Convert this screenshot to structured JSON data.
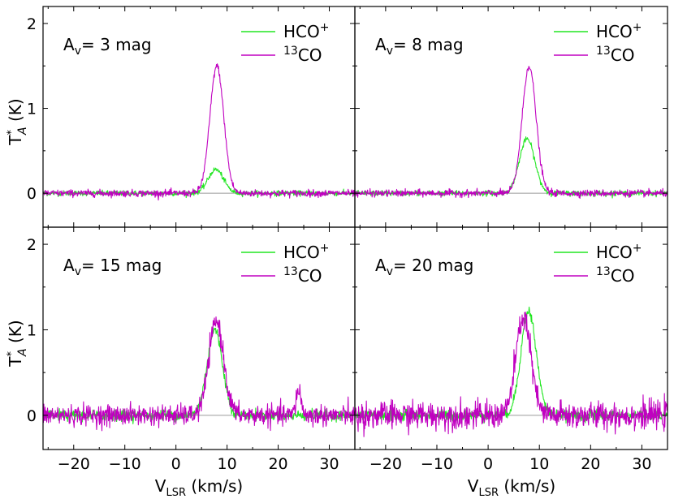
{
  "chart_data": {
    "type": "line",
    "layout": "2x2 shared axes",
    "xlabel_main": "V",
    "xlabel_sub": "LSR",
    "xlabel_unit": " (km/s)",
    "ylabel_main": "T",
    "ylabel_sup": "*",
    "ylabel_sub": "A",
    "ylabel_unit": " (K)",
    "xlim": [
      -26,
      35
    ],
    "xticks": [
      -20,
      -10,
      0,
      10,
      20,
      30
    ],
    "xtick_labels": [
      "−20",
      "−10",
      "0",
      "10",
      "20",
      "30"
    ],
    "colors": {
      "hco": "#22e622",
      "co13": "#c000c0",
      "zero_line": "#9a9a9a"
    },
    "legend": {
      "hco": {
        "main": "HCO",
        "sup": "+"
      },
      "co13": {
        "sup": "13",
        "main": "CO"
      },
      "placement": "top-right"
    },
    "panels": [
      {
        "annotation": {
          "prefix": "A",
          "sub": "v",
          "value": "= 3 mag"
        },
        "ylim": [
          -0.4,
          2.2
        ],
        "yticks": [
          0,
          1,
          2
        ],
        "ytick_labels": [
          "0",
          "1",
          "2"
        ],
        "series": [
          {
            "name": "HCO+",
            "key": "hco",
            "peak": 0.28,
            "center": 7.8,
            "sigma": 1.5,
            "noise": 0.015
          },
          {
            "name": "13CO",
            "key": "co13",
            "peak": 1.5,
            "center": 8.0,
            "sigma": 1.35,
            "noise": 0.02
          }
        ]
      },
      {
        "annotation": {
          "prefix": "A",
          "sub": "v",
          "value": "= 8 mag"
        },
        "ylim": [
          -0.4,
          2.2
        ],
        "yticks": [
          0,
          1,
          2
        ],
        "ytick_labels": [
          "0",
          "1",
          "2"
        ],
        "series": [
          {
            "name": "HCO+",
            "key": "hco",
            "peak": 0.64,
            "center": 7.6,
            "sigma": 1.5,
            "noise": 0.015
          },
          {
            "name": "13CO",
            "key": "co13",
            "peak": 1.5,
            "center": 8.0,
            "sigma": 1.35,
            "noise": 0.02
          }
        ]
      },
      {
        "annotation": {
          "prefix": "A",
          "sub": "v",
          "value": "= 15 mag"
        },
        "ylim": [
          -0.4,
          2.2
        ],
        "yticks": [
          0,
          1,
          2
        ],
        "ytick_labels": [
          "0",
          "1",
          "2"
        ],
        "series": [
          {
            "name": "HCO+",
            "key": "hco",
            "peak": 1.0,
            "center": 7.6,
            "sigma": 1.5,
            "noise": 0.03
          },
          {
            "name": "13CO",
            "key": "co13",
            "peak": 1.1,
            "center": 7.9,
            "sigma": 1.45,
            "noise": 0.06,
            "extra": [
              [
                24,
                0.3,
                0.5
              ]
            ]
          }
        ]
      },
      {
        "annotation": {
          "prefix": "A",
          "sub": "v",
          "value": "= 20 mag"
        },
        "ylim": [
          -0.4,
          2.2
        ],
        "yticks": [
          0,
          1,
          2
        ],
        "ytick_labels": [
          "0",
          "1",
          "2"
        ],
        "series": [
          {
            "name": "HCO+",
            "key": "hco",
            "peak": 1.22,
            "center": 7.9,
            "sigma": 1.5,
            "noise": 0.03
          },
          {
            "name": "13CO",
            "key": "co13",
            "peak": 1.15,
            "center": 6.9,
            "sigma": 1.45,
            "noise": 0.08
          }
        ]
      }
    ]
  }
}
